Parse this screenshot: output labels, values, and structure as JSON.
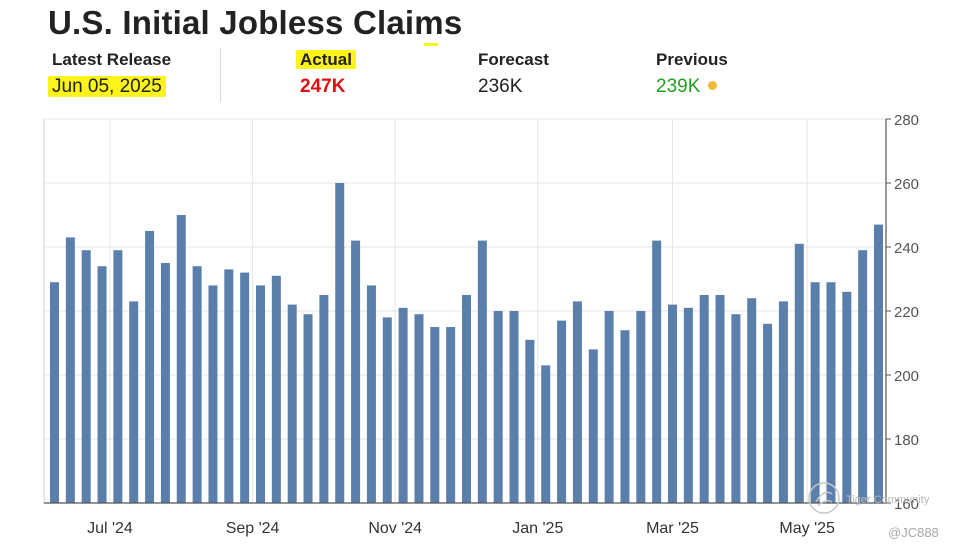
{
  "title": "U.S. Initial Jobless Claims",
  "stats": {
    "latest_release": {
      "label": "Latest Release",
      "value": "Jun 05, 2025"
    },
    "actual": {
      "label": "Actual",
      "value": "247K",
      "color": "#e01010"
    },
    "forecast": {
      "label": "Forecast",
      "value": "236K"
    },
    "previous": {
      "label": "Previous",
      "value": "239K",
      "color": "#22a020"
    }
  },
  "watermark": {
    "brand": "Tiger Community",
    "user": "@JC888"
  },
  "chart_data": {
    "type": "bar",
    "title": "",
    "xlabel": "",
    "ylabel": "",
    "ylim": [
      160,
      280
    ],
    "yticks": [
      160,
      180,
      200,
      220,
      240,
      260,
      280
    ],
    "grid": true,
    "y_axis_position": "right",
    "bar_color": "#5b7fab",
    "x_tick_labels": [
      {
        "label": "Jul '24",
        "index": 3.5
      },
      {
        "label": "Sep '24",
        "index": 12.5
      },
      {
        "label": "Nov '24",
        "index": 21.5
      },
      {
        "label": "Jan '25",
        "index": 30.5
      },
      {
        "label": "Mar '25",
        "index": 39
      },
      {
        "label": "May '25",
        "index": 47.5
      }
    ],
    "values": [
      229,
      243,
      239,
      234,
      239,
      223,
      245,
      235,
      250,
      234,
      228,
      233,
      232,
      228,
      231,
      222,
      219,
      225,
      260,
      242,
      228,
      218,
      221,
      219,
      215,
      215,
      225,
      242,
      220,
      220,
      211,
      203,
      217,
      223,
      208,
      220,
      214,
      220,
      242,
      222,
      221,
      225,
      225,
      219,
      224,
      216,
      223,
      241,
      229,
      229,
      226,
      239,
      247
    ]
  }
}
